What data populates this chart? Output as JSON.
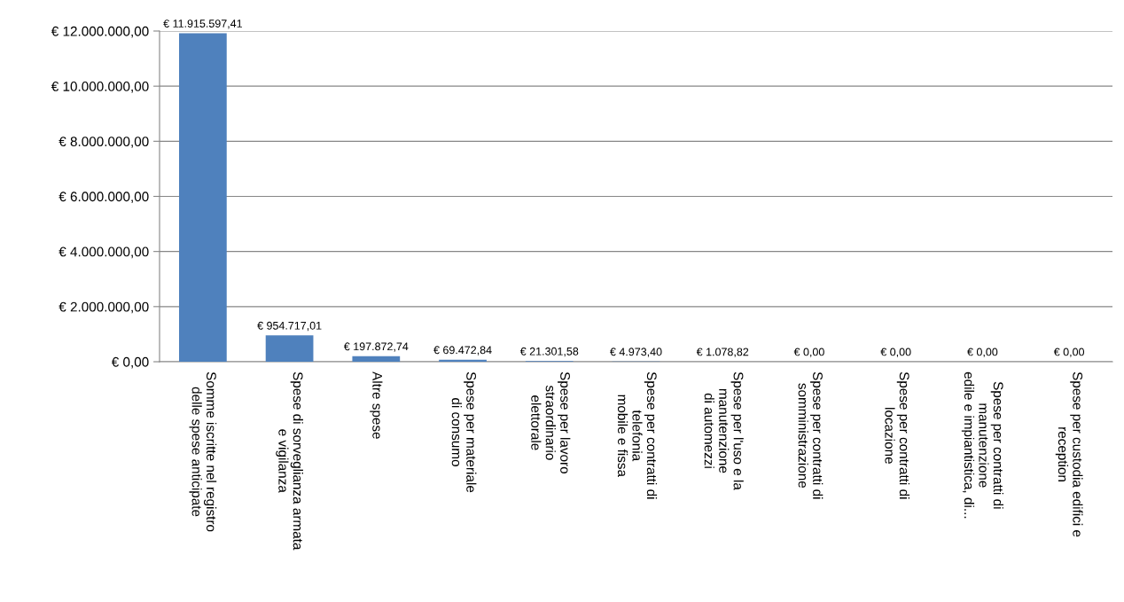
{
  "chart_data": {
    "type": "bar",
    "categories": [
      "Somme iscritte nel registro\ndelle spese anticipate",
      "Spese di sorveglianza armata\ne vigilanza",
      "Altre spese",
      "Spese per materiale\ndi consumo",
      "Spese per lavoro\nstraordinario\nelettorale",
      "Spese per contratti di\ntelefonia\nmobile e fissa",
      "Spese per l'uso e la\nmanutenzione\ndi automezzi",
      "Spese per contratti di\nsomministrazione",
      "Spese per contratti di\nlocazione",
      "Spese per contratti di\nmanutenzione\nedile e impiantistica, di...",
      "Spese per custodia edifici e\nreception"
    ],
    "values": [
      11915597.41,
      954717.01,
      197872.74,
      69472.84,
      21301.58,
      4973.4,
      1078.82,
      0,
      0,
      0,
      0
    ],
    "value_labels": [
      "€ 11.915.597,41",
      "€ 954.717,01",
      "€ 197.872,74",
      "€ 69.472,84",
      "€ 21.301,58",
      "€ 4.973,40",
      "€ 1.078,82",
      "€ 0,00",
      "€ 0,00",
      "€ 0,00",
      "€ 0,00"
    ],
    "color": "#4f81bd",
    "ylim": [
      0,
      12000000
    ],
    "yticks": [
      {
        "value": 0,
        "label": "€ 0,00"
      },
      {
        "value": 2000000,
        "label": "€ 2.000.000,00"
      },
      {
        "value": 4000000,
        "label": "€ 4.000.000,00"
      },
      {
        "value": 6000000,
        "label": "€ 6.000.000,00"
      },
      {
        "value": 8000000,
        "label": "€ 8.000.000,00"
      },
      {
        "value": 10000000,
        "label": "€ 10.000.000,00"
      },
      {
        "value": 12000000,
        "label": "€ 12.000.000,00"
      }
    ],
    "grid": "y",
    "legend": false
  }
}
